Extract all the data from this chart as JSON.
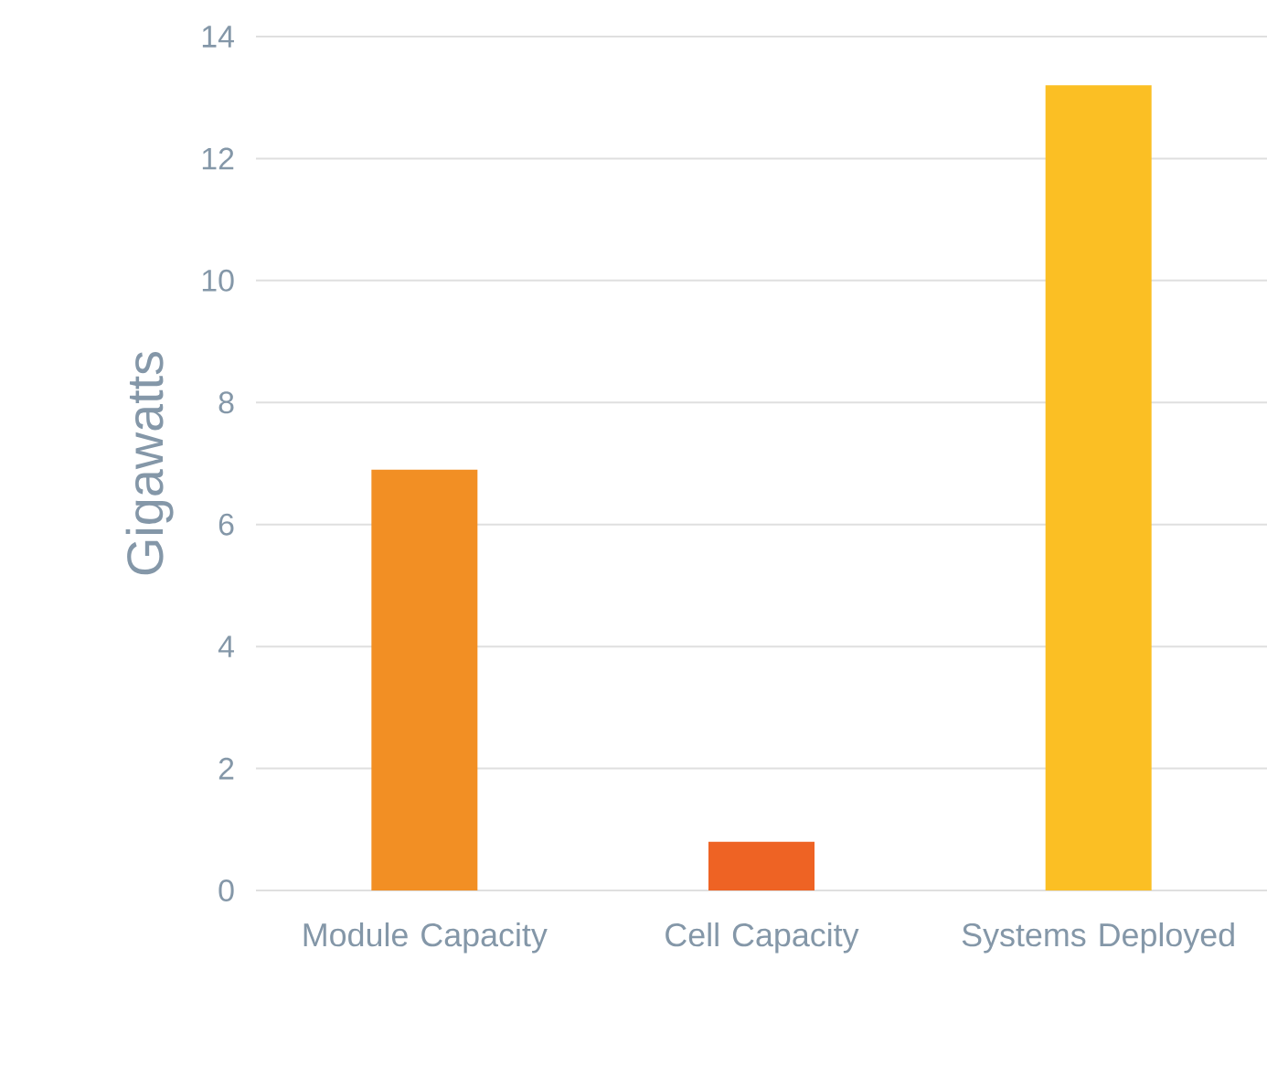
{
  "chart_data": {
    "type": "bar",
    "ylabel": "Gigawatts",
    "categories": [
      "Module Capacity",
      "Cell Capacity",
      "Systems Deployed"
    ],
    "values": [
      6.9,
      0.8,
      13.2
    ],
    "colors": [
      "#f28f24",
      "#ee6324",
      "#fbbf24"
    ],
    "ylim": [
      0,
      14
    ],
    "yticks": [
      0,
      2,
      4,
      6,
      8,
      10,
      12,
      14
    ],
    "grid": "y"
  }
}
